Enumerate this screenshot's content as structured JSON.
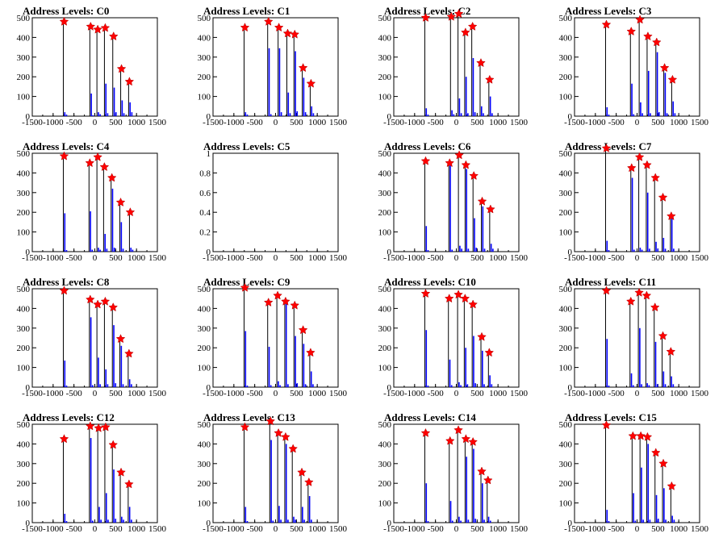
{
  "chart_data": {
    "type": "bar",
    "layout": "4x4 grid of histograms",
    "xlim": [
      -1500,
      1500
    ],
    "xticks": [
      -1500,
      -1000,
      -500,
      0,
      500,
      1000,
      1500
    ],
    "colors": {
      "bars": "#0000ff",
      "markers": "#ff0000",
      "lines": "#000000"
    },
    "panels": [
      {
        "title": "Address Levels: C0",
        "ylim": [
          0,
          500
        ],
        "yticks": [
          0,
          100,
          200,
          300,
          400,
          500
        ],
        "peaks": [
          {
            "x": -736,
            "y": 480,
            "bars": [
              20,
              8
            ]
          },
          {
            "x": -100,
            "y": 455,
            "bars": [
              115,
              5
            ]
          },
          {
            "x": 70,
            "y": 440,
            "bars": [
              20,
              10
            ]
          },
          {
            "x": 250,
            "y": 448,
            "bars": [
              165,
              15
            ]
          },
          {
            "x": 450,
            "y": 405,
            "bars": [
              145,
              20
            ]
          },
          {
            "x": 640,
            "y": 240,
            "bars": [
              80,
              15
            ]
          },
          {
            "x": 830,
            "y": 175,
            "bars": [
              70,
              20
            ]
          }
        ]
      },
      {
        "title": "Address Levels: C1",
        "ylim": [
          0,
          500
        ],
        "yticks": [
          0,
          100,
          200,
          300,
          400,
          500
        ],
        "peaks": [
          {
            "x": -736,
            "y": 450,
            "bars": [
              20,
              8
            ]
          },
          {
            "x": -170,
            "y": 480,
            "bars": [
              345,
              10
            ]
          },
          {
            "x": 80,
            "y": 450,
            "bars": [
              345,
              20
            ]
          },
          {
            "x": 290,
            "y": 420,
            "bars": [
              120,
              15
            ]
          },
          {
            "x": 460,
            "y": 415,
            "bars": [
              330,
              25
            ]
          },
          {
            "x": 660,
            "y": 245,
            "bars": [
              195,
              20
            ]
          },
          {
            "x": 850,
            "y": 165,
            "bars": [
              50,
              15
            ]
          }
        ]
      },
      {
        "title": "Address Levels: C2",
        "ylim": [
          0,
          500
        ],
        "yticks": [
          0,
          100,
          200,
          300,
          400,
          500
        ],
        "peaks": [
          {
            "x": -736,
            "y": 500,
            "bars": [
              40,
              8
            ]
          },
          {
            "x": -120,
            "y": 505,
            "bars": [
              30,
              10
            ]
          },
          {
            "x": 60,
            "y": 520,
            "bars": [
              90,
              15
            ]
          },
          {
            "x": 220,
            "y": 425,
            "bars": [
              200,
              15
            ]
          },
          {
            "x": 390,
            "y": 455,
            "bars": [
              295,
              20
            ]
          },
          {
            "x": 590,
            "y": 270,
            "bars": [
              50,
              15
            ]
          },
          {
            "x": 800,
            "y": 185,
            "bars": [
              100,
              15
            ]
          }
        ]
      },
      {
        "title": "Address Levels: C3",
        "ylim": [
          0,
          500
        ],
        "yticks": [
          0,
          100,
          200,
          300,
          400,
          500
        ],
        "peaks": [
          {
            "x": -736,
            "y": 465,
            "bars": [
              45,
              8
            ]
          },
          {
            "x": -140,
            "y": 430,
            "bars": [
              165,
              10
            ]
          },
          {
            "x": 70,
            "y": 490,
            "bars": [
              70,
              15
            ]
          },
          {
            "x": 260,
            "y": 405,
            "bars": [
              230,
              15
            ]
          },
          {
            "x": 470,
            "y": 375,
            "bars": [
              325,
              20
            ]
          },
          {
            "x": 660,
            "y": 245,
            "bars": [
              220,
              15
            ]
          },
          {
            "x": 850,
            "y": 185,
            "bars": [
              75,
              15
            ]
          }
        ]
      },
      {
        "title": "Address Levels: C4",
        "ylim": [
          0,
          500
        ],
        "yticks": [
          0,
          100,
          200,
          300,
          400,
          500
        ],
        "peaks": [
          {
            "x": -736,
            "y": 485,
            "bars": [
              195,
              8
            ]
          },
          {
            "x": -120,
            "y": 450,
            "bars": [
              205,
              10
            ]
          },
          {
            "x": 70,
            "y": 480,
            "bars": [
              20,
              10
            ]
          },
          {
            "x": 230,
            "y": 430,
            "bars": [
              90,
              15
            ]
          },
          {
            "x": 410,
            "y": 375,
            "bars": [
              320,
              20
            ]
          },
          {
            "x": 620,
            "y": 250,
            "bars": [
              150,
              15
            ]
          },
          {
            "x": 850,
            "y": 200,
            "bars": [
              20,
              10
            ]
          }
        ]
      },
      {
        "title": "Address Levels: C5",
        "ylim": [
          0,
          1
        ],
        "yticks": [
          0,
          0.2,
          0.4,
          0.6,
          0.8,
          1
        ],
        "peaks": []
      },
      {
        "title": "Address Levels: C6",
        "ylim": [
          0,
          500
        ],
        "yticks": [
          0,
          100,
          200,
          300,
          400,
          500
        ],
        "peaks": [
          {
            "x": -736,
            "y": 460,
            "bars": [
              130,
              8
            ]
          },
          {
            "x": -160,
            "y": 450,
            "bars": [
              450,
              10
            ]
          },
          {
            "x": 70,
            "y": 490,
            "bars": [
              30,
              15
            ]
          },
          {
            "x": 230,
            "y": 440,
            "bars": [
              420,
              15
            ]
          },
          {
            "x": 420,
            "y": 385,
            "bars": [
              170,
              20
            ]
          },
          {
            "x": 620,
            "y": 255,
            "bars": [
              230,
              15
            ]
          },
          {
            "x": 820,
            "y": 215,
            "bars": [
              40,
              15
            ]
          }
        ]
      },
      {
        "title": "Address Levels: C7",
        "ylim": [
          0,
          500
        ],
        "yticks": [
          0,
          100,
          200,
          300,
          400,
          500
        ],
        "peaks": [
          {
            "x": -736,
            "y": 525,
            "bars": [
              55,
              8
            ]
          },
          {
            "x": -130,
            "y": 425,
            "bars": [
              375,
              10
            ]
          },
          {
            "x": 60,
            "y": 480,
            "bars": [
              20,
              10
            ]
          },
          {
            "x": 240,
            "y": 440,
            "bars": [
              300,
              15
            ]
          },
          {
            "x": 440,
            "y": 375,
            "bars": [
              50,
              15
            ]
          },
          {
            "x": 620,
            "y": 275,
            "bars": [
              70,
              15
            ]
          },
          {
            "x": 820,
            "y": 180,
            "bars": [
              175,
              15
            ]
          }
        ]
      },
      {
        "title": "Address Levels: C8",
        "ylim": [
          0,
          500
        ],
        "yticks": [
          0,
          100,
          200,
          300,
          400,
          500
        ],
        "peaks": [
          {
            "x": -736,
            "y": 490,
            "bars": [
              135,
              8
            ]
          },
          {
            "x": -110,
            "y": 445,
            "bars": [
              355,
              10
            ]
          },
          {
            "x": 70,
            "y": 420,
            "bars": [
              150,
              15
            ]
          },
          {
            "x": 250,
            "y": 435,
            "bars": [
              90,
              15
            ]
          },
          {
            "x": 440,
            "y": 405,
            "bars": [
              315,
              20
            ]
          },
          {
            "x": 620,
            "y": 245,
            "bars": [
              210,
              15
            ]
          },
          {
            "x": 820,
            "y": 170,
            "bars": [
              40,
              15
            ]
          }
        ]
      },
      {
        "title": "Address Levels: C9",
        "ylim": [
          0,
          500
        ],
        "yticks": [
          0,
          100,
          200,
          300,
          400,
          500
        ],
        "peaks": [
          {
            "x": -736,
            "y": 505,
            "bars": [
              285,
              8
            ]
          },
          {
            "x": -170,
            "y": 430,
            "bars": [
              205,
              10
            ]
          },
          {
            "x": 50,
            "y": 465,
            "bars": [
              30,
              10
            ]
          },
          {
            "x": 240,
            "y": 435,
            "bars": [
              435,
              15
            ]
          },
          {
            "x": 460,
            "y": 415,
            "bars": [
              260,
              20
            ]
          },
          {
            "x": 660,
            "y": 290,
            "bars": [
              220,
              15
            ]
          },
          {
            "x": 840,
            "y": 175,
            "bars": [
              80,
              15
            ]
          }
        ]
      },
      {
        "title": "Address Levels: C10",
        "ylim": [
          0,
          500
        ],
        "yticks": [
          0,
          100,
          200,
          300,
          400,
          500
        ],
        "peaks": [
          {
            "x": -736,
            "y": 475,
            "bars": [
              290,
              8
            ]
          },
          {
            "x": -170,
            "y": 450,
            "bars": [
              140,
              10
            ]
          },
          {
            "x": 50,
            "y": 470,
            "bars": [
              25,
              10
            ]
          },
          {
            "x": 210,
            "y": 450,
            "bars": [
              200,
              15
            ]
          },
          {
            "x": 400,
            "y": 420,
            "bars": [
              260,
              20
            ]
          },
          {
            "x": 610,
            "y": 255,
            "bars": [
              185,
              15
            ]
          },
          {
            "x": 790,
            "y": 175,
            "bars": [
              60,
              15
            ]
          }
        ]
      },
      {
        "title": "Address Levels: C11",
        "ylim": [
          0,
          500
        ],
        "yticks": [
          0,
          100,
          200,
          300,
          400,
          500
        ],
        "peaks": [
          {
            "x": -736,
            "y": 490,
            "bars": [
              245,
              8
            ]
          },
          {
            "x": -150,
            "y": 435,
            "bars": [
              70,
              10
            ]
          },
          {
            "x": 50,
            "y": 480,
            "bars": [
              300,
              15
            ]
          },
          {
            "x": 230,
            "y": 465,
            "bars": [
              20,
              10
            ]
          },
          {
            "x": 430,
            "y": 405,
            "bars": [
              230,
              15
            ]
          },
          {
            "x": 620,
            "y": 260,
            "bars": [
              80,
              15
            ]
          },
          {
            "x": 810,
            "y": 180,
            "bars": [
              55,
              15
            ]
          }
        ]
      },
      {
        "title": "Address Levels: C12",
        "ylim": [
          0,
          500
        ],
        "yticks": [
          0,
          100,
          200,
          300,
          400,
          500
        ],
        "peaks": [
          {
            "x": -736,
            "y": 425,
            "bars": [
              45,
              8
            ]
          },
          {
            "x": -110,
            "y": 490,
            "bars": [
              430,
              10
            ]
          },
          {
            "x": 90,
            "y": 480,
            "bars": [
              80,
              15
            ]
          },
          {
            "x": 260,
            "y": 485,
            "bars": [
              150,
              15
            ]
          },
          {
            "x": 440,
            "y": 395,
            "bars": [
              270,
              20
            ]
          },
          {
            "x": 630,
            "y": 255,
            "bars": [
              30,
              15
            ]
          },
          {
            "x": 820,
            "y": 195,
            "bars": [
              80,
              15
            ]
          }
        ]
      },
      {
        "title": "Address Levels: C13",
        "ylim": [
          0,
          500
        ],
        "yticks": [
          0,
          100,
          200,
          300,
          400,
          500
        ],
        "peaks": [
          {
            "x": -736,
            "y": 485,
            "bars": [
              80,
              8
            ]
          },
          {
            "x": -120,
            "y": 515,
            "bars": [
              420,
              10
            ]
          },
          {
            "x": 70,
            "y": 455,
            "bars": [
              85,
              15
            ]
          },
          {
            "x": 240,
            "y": 435,
            "bars": [
              400,
              15
            ]
          },
          {
            "x": 420,
            "y": 375,
            "bars": [
              30,
              15
            ]
          },
          {
            "x": 630,
            "y": 255,
            "bars": [
              80,
              15
            ]
          },
          {
            "x": 800,
            "y": 205,
            "bars": [
              135,
              15
            ]
          }
        ]
      },
      {
        "title": "Address Levels: C14",
        "ylim": [
          0,
          500
        ],
        "yticks": [
          0,
          100,
          200,
          300,
          400,
          500
        ],
        "peaks": [
          {
            "x": -736,
            "y": 455,
            "bars": [
              200,
              8
            ]
          },
          {
            "x": -150,
            "y": 415,
            "bars": [
              110,
              10
            ]
          },
          {
            "x": 50,
            "y": 470,
            "bars": [
              30,
              10
            ]
          },
          {
            "x": 230,
            "y": 425,
            "bars": [
              335,
              15
            ]
          },
          {
            "x": 400,
            "y": 410,
            "bars": [
              375,
              20
            ]
          },
          {
            "x": 610,
            "y": 260,
            "bars": [
              200,
              15
            ]
          },
          {
            "x": 760,
            "y": 215,
            "bars": [
              30,
              10
            ]
          }
        ]
      },
      {
        "title": "Address Levels: C15",
        "ylim": [
          0,
          500
        ],
        "yticks": [
          0,
          100,
          200,
          300,
          400,
          500
        ],
        "peaks": [
          {
            "x": -736,
            "y": 495,
            "bars": [
              65,
              8
            ]
          },
          {
            "x": -100,
            "y": 440,
            "bars": [
              150,
              10
            ]
          },
          {
            "x": 90,
            "y": 440,
            "bars": [
              280,
              15
            ]
          },
          {
            "x": 250,
            "y": 435,
            "bars": [
              400,
              15
            ]
          },
          {
            "x": 450,
            "y": 355,
            "bars": [
              140,
              20
            ]
          },
          {
            "x": 630,
            "y": 300,
            "bars": [
              175,
              15
            ]
          },
          {
            "x": 830,
            "y": 185,
            "bars": [
              35,
              15
            ]
          }
        ]
      }
    ]
  }
}
